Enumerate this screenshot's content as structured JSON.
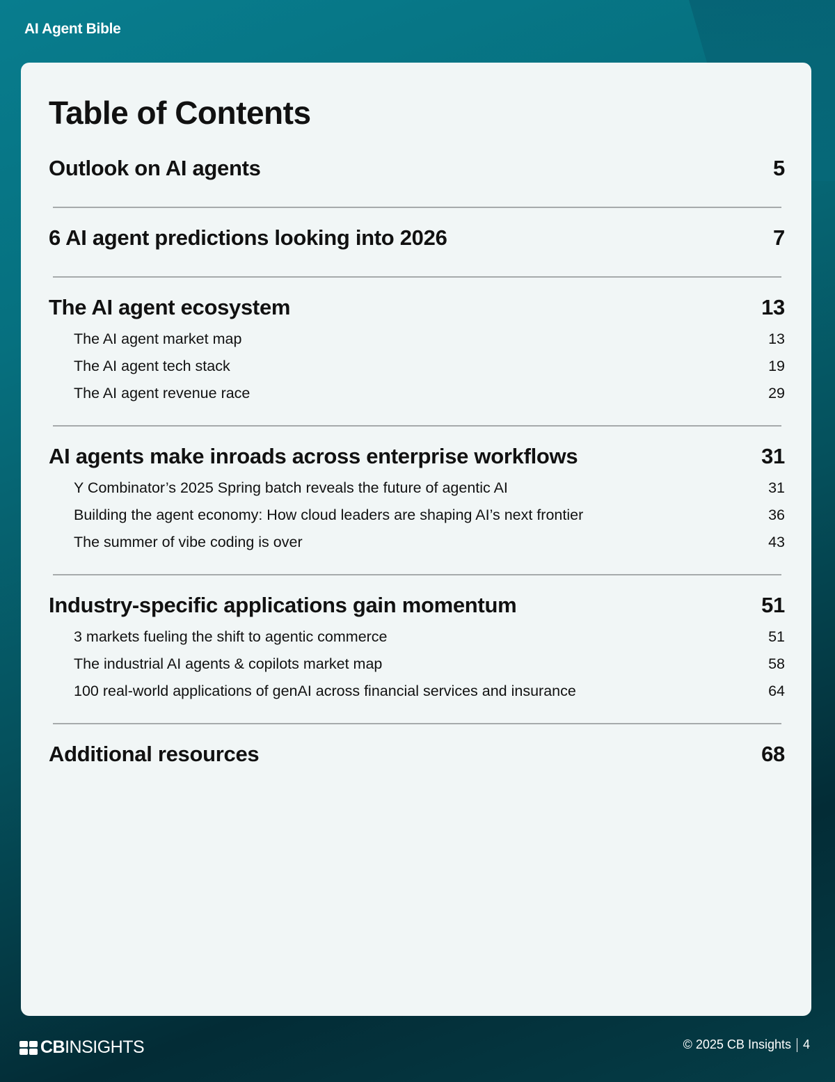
{
  "header": {
    "doc_title": "AI Agent Bible"
  },
  "toc": {
    "title": "Table of Contents",
    "sections": [
      {
        "title": "Outlook on AI agents",
        "page": "5",
        "items": []
      },
      {
        "title": "6 AI agent predictions looking into 2026",
        "page": "7",
        "items": []
      },
      {
        "title": "The AI agent ecosystem",
        "page": "13",
        "items": [
          {
            "title": "The AI agent market map",
            "page": "13"
          },
          {
            "title": "The AI agent tech stack",
            "page": "19"
          },
          {
            "title": "The AI agent revenue race",
            "page": "29"
          }
        ]
      },
      {
        "title": "AI agents make inroads across enterprise workflows",
        "page": "31",
        "items": [
          {
            "title": "Y Combinator’s 2025 Spring batch reveals the future of agentic AI",
            "page": "31"
          },
          {
            "title": "Building the agent economy: How cloud leaders are shaping AI’s next frontier",
            "page": "36"
          },
          {
            "title": "The summer of vibe coding is over",
            "page": "43"
          }
        ]
      },
      {
        "title": "Industry-specific applications gain momentum",
        "page": "51",
        "items": [
          {
            "title": "3 markets fueling the shift to agentic commerce",
            "page": "51"
          },
          {
            "title": "The industrial AI agents & copilots market map",
            "page": "58"
          },
          {
            "title": "100 real-world applications of genAI across financial services and insurance",
            "page": "64"
          }
        ]
      },
      {
        "title": "Additional resources",
        "page": "68",
        "items": []
      }
    ]
  },
  "footer": {
    "logo_bold": "CB",
    "logo_light": "INSIGHTS",
    "copyright": "© 2025 CB Insights",
    "page_number": "4"
  }
}
